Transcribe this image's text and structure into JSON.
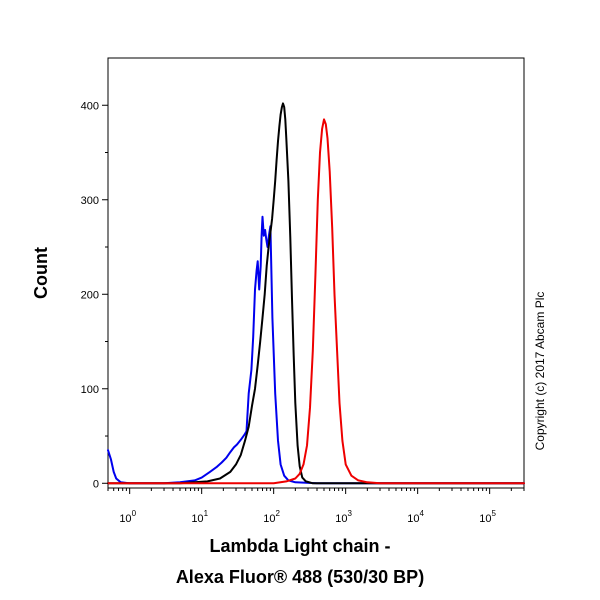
{
  "chart_data": {
    "type": "line",
    "xlabel_lines": [
      "Lambda Light chain -",
      "Alexa Fluor® 488 (530/30 BP)"
    ],
    "ylabel": "Count",
    "annotation": "Copyright (c) 2017 Abcam Plc",
    "x_scale": "log",
    "xlim": [
      0.5,
      300000
    ],
    "ylim": [
      -5,
      450
    ],
    "grid": false,
    "x_ticks": [
      {
        "value": 1,
        "base": "10",
        "exp": "0"
      },
      {
        "value": 10,
        "base": "10",
        "exp": "1"
      },
      {
        "value": 100,
        "base": "10",
        "exp": "2"
      },
      {
        "value": 1000,
        "base": "10",
        "exp": "3"
      },
      {
        "value": 10000,
        "base": "10",
        "exp": "4"
      },
      {
        "value": 100000,
        "base": "10",
        "exp": "5"
      }
    ],
    "y_ticks": [
      {
        "value": 0,
        "label": "0"
      },
      {
        "value": 100,
        "label": "100"
      },
      {
        "value": 200,
        "label": "200"
      },
      {
        "value": 300,
        "label": "300"
      },
      {
        "value": 400,
        "label": "400"
      }
    ],
    "series": [
      {
        "color": "#0000ee",
        "x": [
          0.5,
          0.55,
          0.6,
          0.65,
          0.75,
          1,
          3,
          5,
          8,
          10,
          13,
          16,
          19,
          22,
          25,
          28,
          31,
          35,
          39,
          42,
          45,
          49,
          52,
          55,
          58,
          60,
          63,
          66,
          68,
          70,
          73,
          76,
          79,
          82,
          86,
          90,
          96,
          105,
          115,
          125,
          140,
          160,
          200,
          400,
          1000,
          10000,
          100000,
          300000
        ],
        "y": [
          35,
          25,
          12,
          5,
          1,
          0,
          0,
          1,
          3,
          6,
          12,
          17,
          22,
          27,
          33,
          38,
          41,
          46,
          51,
          55,
          95,
          120,
          155,
          205,
          225,
          235,
          205,
          230,
          262,
          282,
          262,
          268,
          258,
          250,
          262,
          272,
          175,
          95,
          45,
          20,
          8,
          3,
          1,
          0,
          0,
          0,
          0,
          0
        ]
      },
      {
        "color": "#000000",
        "x": [
          0.5,
          5,
          12,
          18,
          25,
          30,
          35,
          40,
          45,
          50,
          55,
          60,
          65,
          70,
          75,
          80,
          85,
          90,
          95,
          100,
          105,
          110,
          115,
          120,
          125,
          130,
          135,
          140,
          145,
          150,
          160,
          170,
          180,
          190,
          200,
          215,
          230,
          250,
          280,
          350,
          500,
          1000,
          10000,
          300000
        ],
        "y": [
          0,
          0,
          2,
          5,
          12,
          20,
          30,
          45,
          60,
          82,
          100,
          125,
          150,
          175,
          200,
          230,
          250,
          265,
          280,
          300,
          320,
          342,
          362,
          378,
          390,
          398,
          402,
          398,
          385,
          365,
          320,
          260,
          195,
          135,
          85,
          40,
          18,
          6,
          2,
          0,
          0,
          0,
          0,
          0
        ]
      },
      {
        "color": "#ee0000",
        "x": [
          0.5,
          10,
          100,
          150,
          200,
          230,
          260,
          290,
          320,
          350,
          380,
          410,
          440,
          470,
          500,
          530,
          560,
          600,
          650,
          700,
          760,
          820,
          900,
          1000,
          1200,
          1500,
          2000,
          3000,
          10000,
          300000
        ],
        "y": [
          0,
          0,
          0,
          2,
          5,
          10,
          20,
          40,
          80,
          140,
          220,
          300,
          350,
          375,
          385,
          380,
          365,
          330,
          270,
          200,
          140,
          85,
          45,
          20,
          8,
          3,
          1,
          0,
          0,
          0
        ]
      }
    ]
  }
}
